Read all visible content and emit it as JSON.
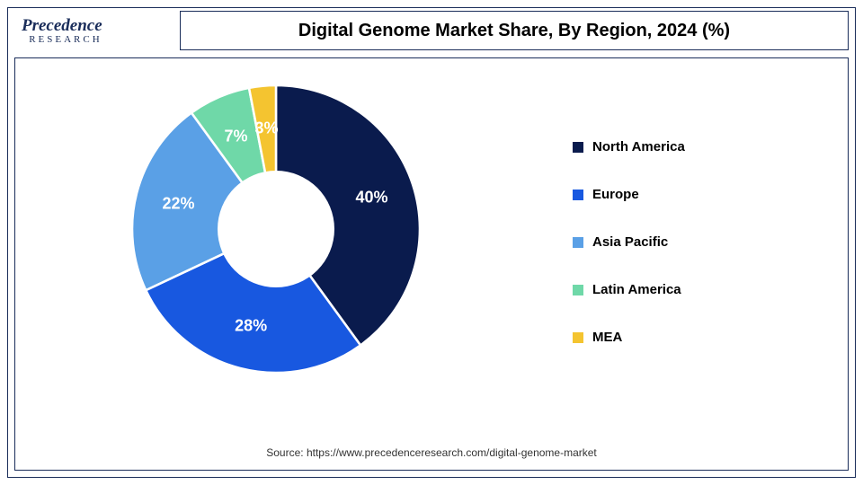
{
  "logo": {
    "main": "Precedence",
    "sub": "RESEARCH"
  },
  "title": "Digital Genome Market Share, By Region, 2024 (%)",
  "chart": {
    "type": "donut",
    "inner_radius_ratio": 0.41,
    "background_color": "#ffffff",
    "label_fontsize": 18,
    "label_color": "#ffffff",
    "legend_fontsize": 15,
    "segments": [
      {
        "name": "North America",
        "value": 40,
        "color": "#0a1b4d",
        "label": "40%"
      },
      {
        "name": "Europe",
        "value": 28,
        "color": "#1858e0",
        "label": "28%"
      },
      {
        "name": "Asia Pacific",
        "value": 22,
        "color": "#5aa0e6",
        "label": "22%"
      },
      {
        "name": "Latin America",
        "value": 7,
        "color": "#6fd8a8",
        "label": "7%"
      },
      {
        "name": "MEA",
        "value": 3,
        "color": "#f4c430",
        "label": "3%"
      }
    ]
  },
  "source": "Source: https://www.precedenceresearch.com/digital-genome-market"
}
